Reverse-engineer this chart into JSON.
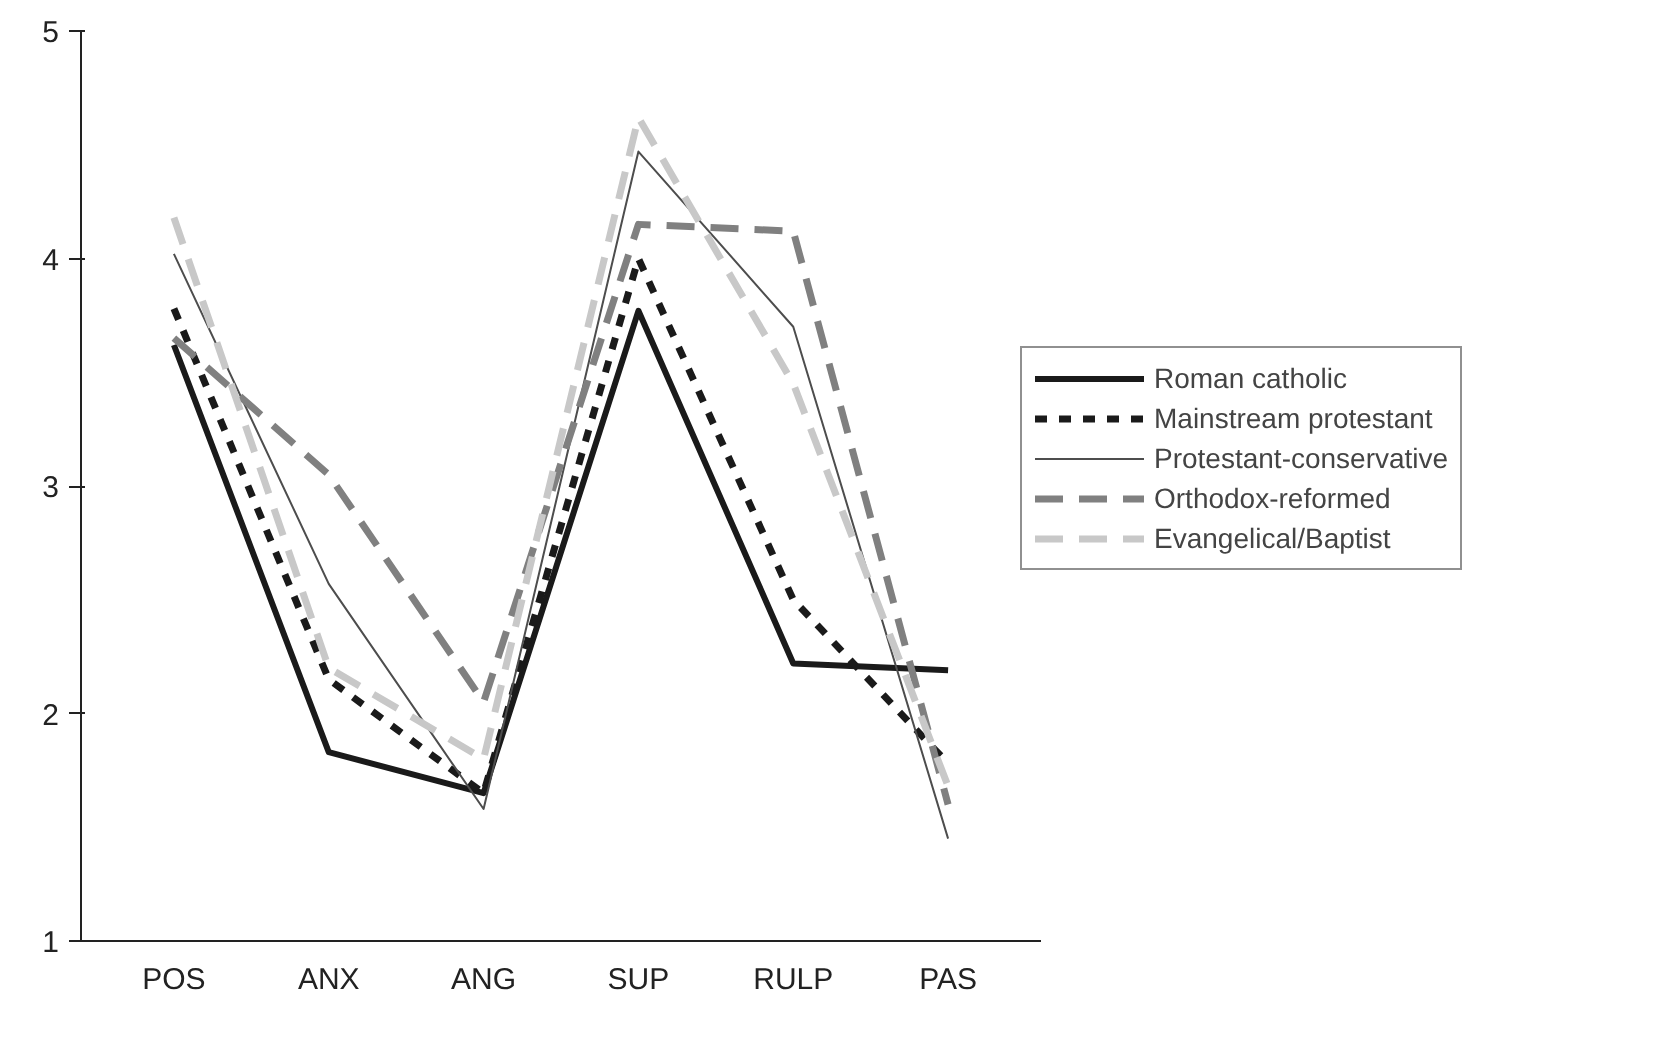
{
  "chart_data": {
    "type": "line",
    "categories": [
      "POS",
      "ANX",
      "ANG",
      "SUP",
      "RULP",
      "PAS"
    ],
    "ylim": [
      1,
      5
    ],
    "yticks": [
      1,
      2,
      3,
      4,
      5
    ],
    "grid": false,
    "legend": "right",
    "marker": "none",
    "series": [
      {
        "name": "Roman catholic",
        "color": "#1a1a1a",
        "line_style": "solid",
        "values": [
          3.62,
          1.83,
          1.65,
          3.77,
          2.22,
          2.19
        ]
      },
      {
        "name": "Mainstream protestant",
        "color": "#1a1a1a",
        "line_style": "dotted",
        "values": [
          3.78,
          2.15,
          1.65,
          4.0,
          2.5,
          1.78
        ]
      },
      {
        "name": "Protestant-conservative",
        "color": "#4d4d4d",
        "line_style": "solid",
        "values": [
          4.02,
          2.57,
          1.58,
          4.47,
          3.7,
          1.45
        ]
      },
      {
        "name": "Orthodox-reformed",
        "color": "#808080",
        "line_style": "dashed",
        "values": [
          3.65,
          3.05,
          2.05,
          4.15,
          4.12,
          1.6
        ]
      },
      {
        "name": "Evangelical/Baptist",
        "color": "#c8c8c8",
        "line_style": "dashed",
        "values": [
          4.18,
          2.2,
          1.8,
          4.62,
          3.45,
          1.68
        ]
      }
    ]
  }
}
